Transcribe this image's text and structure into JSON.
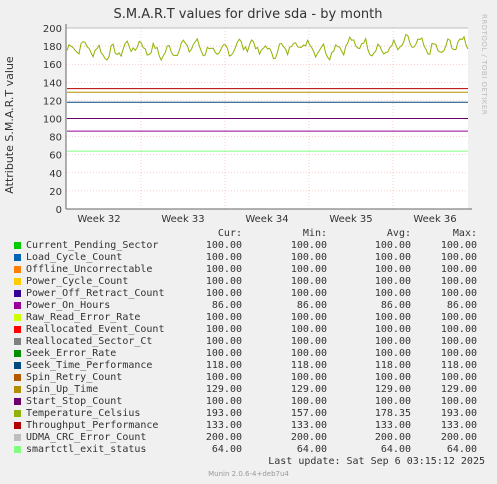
{
  "side_label": "RRDTOOL / TOBI OETIKER",
  "last_update": "Last update:  Sat Sep  6 03:15:12 2025",
  "footer": "Munin 2.0.6-4+deb7u4",
  "chart_data": {
    "type": "line",
    "title": "S.M.A.R.T values for drive sda - by month",
    "ylabel": "Attribute S.M.A.R.T value",
    "xlabel": "",
    "ylim": [
      0,
      200
    ],
    "yticks": [
      "0",
      "20",
      "40",
      "60",
      "80",
      "100",
      "120",
      "140",
      "160",
      "180",
      "200"
    ],
    "xticks": [
      "Week 32",
      "Week 33",
      "Week 34",
      "Week 35",
      "Week 36"
    ],
    "grid": true,
    "legend_headers": {
      "cur": "Cur:",
      "min": "Min:",
      "avg": "Avg:",
      "max": "Max:"
    },
    "series": [
      {
        "name": "Current_Pending_Sector",
        "color": "#00cc00",
        "cur": "100.00",
        "min": "100.00",
        "avg": "100.00",
        "max": "100.00"
      },
      {
        "name": "Load_Cycle_Count",
        "color": "#0066b3",
        "cur": "100.00",
        "min": "100.00",
        "avg": "100.00",
        "max": "100.00"
      },
      {
        "name": "Offline_Uncorrectable",
        "color": "#ff8000",
        "cur": "100.00",
        "min": "100.00",
        "avg": "100.00",
        "max": "100.00"
      },
      {
        "name": "Power_Cycle_Count",
        "color": "#ffcc00",
        "cur": "100.00",
        "min": "100.00",
        "avg": "100.00",
        "max": "100.00"
      },
      {
        "name": "Power_Off_Retract_Count",
        "color": "#330099",
        "cur": "100.00",
        "min": "100.00",
        "avg": "100.00",
        "max": "100.00"
      },
      {
        "name": "Power_On_Hours",
        "color": "#990099",
        "cur": "86.00",
        "min": "86.00",
        "avg": "86.00",
        "max": "86.00"
      },
      {
        "name": "Raw_Read_Error_Rate",
        "color": "#ccff00",
        "cur": "100.00",
        "min": "100.00",
        "avg": "100.00",
        "max": "100.00"
      },
      {
        "name": "Reallocated_Event_Count",
        "color": "#ff0000",
        "cur": "100.00",
        "min": "100.00",
        "avg": "100.00",
        "max": "100.00"
      },
      {
        "name": "Reallocated_Sector_Ct",
        "color": "#808080",
        "cur": "100.00",
        "min": "100.00",
        "avg": "100.00",
        "max": "100.00"
      },
      {
        "name": "Seek_Error_Rate",
        "color": "#008f00",
        "cur": "100.00",
        "min": "100.00",
        "avg": "100.00",
        "max": "100.00"
      },
      {
        "name": "Seek_Time_Performance",
        "color": "#00487d",
        "cur": "118.00",
        "min": "118.00",
        "avg": "118.00",
        "max": "118.00"
      },
      {
        "name": "Spin_Retry_Count",
        "color": "#b35a00",
        "cur": "100.00",
        "min": "100.00",
        "avg": "100.00",
        "max": "100.00"
      },
      {
        "name": "Spin_Up_Time",
        "color": "#b38f00",
        "cur": "129.00",
        "min": "129.00",
        "avg": "129.00",
        "max": "129.00"
      },
      {
        "name": "Start_Stop_Count",
        "color": "#6b006b",
        "cur": "100.00",
        "min": "100.00",
        "avg": "100.00",
        "max": "100.00"
      },
      {
        "name": "Temperature_Celsius",
        "color": "#8fb300",
        "cur": "193.00",
        "min": "157.00",
        "avg": "178.35",
        "max": "193.00"
      },
      {
        "name": "Throughput_Performance",
        "color": "#b30000",
        "cur": "133.00",
        "min": "133.00",
        "avg": "133.00",
        "max": "133.00"
      },
      {
        "name": "UDMA_CRC_Error_Count",
        "color": "#bebebe",
        "cur": "200.00",
        "min": "200.00",
        "avg": "200.00",
        "max": "200.00"
      },
      {
        "name": "smartctl_exit_status",
        "color": "#80ff80",
        "cur": "64.00",
        "min": "64.00",
        "avg": "64.00",
        "max": "64.00"
      }
    ]
  }
}
